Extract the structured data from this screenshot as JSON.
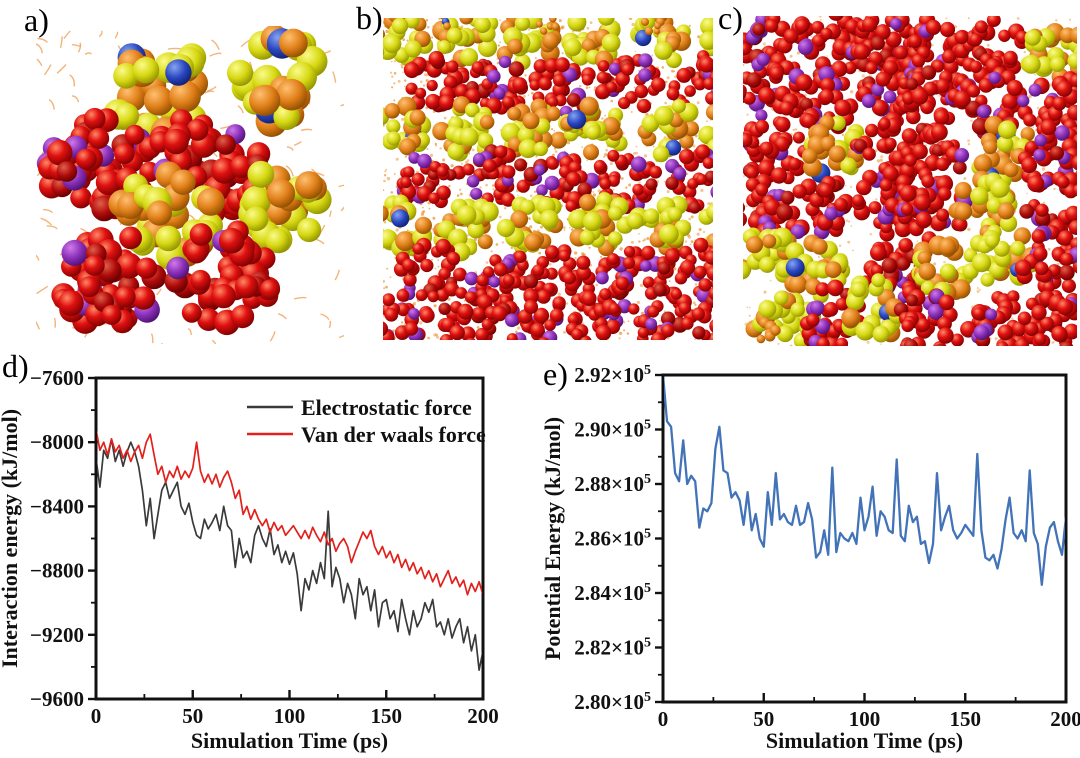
{
  "figure": {
    "panels": {
      "a": {
        "label": "a)"
      },
      "b": {
        "label": "b)"
      },
      "c": {
        "label": "c)"
      },
      "d": {
        "label": "d)"
      },
      "e": {
        "label": "e)"
      }
    },
    "colors": {
      "electrostatic": "#3a3a3a",
      "vdw": "#e3211c",
      "potential": "#4273b8",
      "red_cluster": "#d40f0f",
      "purple_core": "#8a2fb8",
      "yellow_cluster": "#d6d812",
      "orange_atom": "#e07f18",
      "solvent": "#ef9440"
    }
  },
  "chart_data": [
    {
      "id": "d",
      "type": "line",
      "panel_label": "d)",
      "xlabel": "Simulation Time (ps)",
      "ylabel": "Interaction energy (kJ/mol)",
      "xlim": [
        0,
        200
      ],
      "ylim": [
        -9600,
        -7600
      ],
      "xticks": [
        0,
        50,
        100,
        150,
        200
      ],
      "yticks": [
        -9600,
        -9200,
        -8800,
        -8400,
        -8000,
        -7600
      ],
      "x_minor_step": 25,
      "y_minor_step": 200,
      "grid": false,
      "legend_position": "top-right",
      "x": [
        0,
        2,
        4,
        6,
        8,
        10,
        12,
        14,
        16,
        18,
        20,
        22,
        24,
        26,
        28,
        30,
        32,
        34,
        36,
        38,
        40,
        42,
        44,
        46,
        48,
        50,
        52,
        54,
        56,
        58,
        60,
        62,
        64,
        66,
        68,
        70,
        72,
        74,
        76,
        78,
        80,
        82,
        84,
        86,
        88,
        90,
        92,
        94,
        96,
        98,
        100,
        102,
        104,
        106,
        108,
        110,
        112,
        114,
        116,
        118,
        120,
        122,
        124,
        126,
        128,
        130,
        132,
        134,
        136,
        138,
        140,
        142,
        144,
        146,
        148,
        150,
        152,
        154,
        156,
        158,
        160,
        162,
        164,
        166,
        168,
        170,
        172,
        174,
        176,
        178,
        180,
        182,
        184,
        186,
        188,
        190,
        192,
        194,
        196,
        198,
        200
      ],
      "series": [
        {
          "name": "Electrostatic force",
          "color": "#3a3a3a",
          "values": [
            -8100,
            -8280,
            -8050,
            -8100,
            -7980,
            -8120,
            -8050,
            -8150,
            -8060,
            -8000,
            -8060,
            -8150,
            -8300,
            -8520,
            -8350,
            -8600,
            -8450,
            -8300,
            -8250,
            -8350,
            -8300,
            -8250,
            -8400,
            -8450,
            -8380,
            -8500,
            -8580,
            -8600,
            -8480,
            -8540,
            -8500,
            -8450,
            -8550,
            -8400,
            -8520,
            -8550,
            -8780,
            -8600,
            -8720,
            -8680,
            -8750,
            -8580,
            -8520,
            -8600,
            -8650,
            -8540,
            -8700,
            -8640,
            -8750,
            -8680,
            -8760,
            -8690,
            -8820,
            -9050,
            -8850,
            -8920,
            -8800,
            -8880,
            -8750,
            -8850,
            -8430,
            -8900,
            -8780,
            -8850,
            -9000,
            -8880,
            -8950,
            -9100,
            -8850,
            -8950,
            -8900,
            -9050,
            -8920,
            -9150,
            -9000,
            -8980,
            -9100,
            -9050,
            -9180,
            -8980,
            -9100,
            -9200,
            -9050,
            -9150,
            -9100,
            -9000,
            -9060,
            -8980,
            -9150,
            -9120,
            -9200,
            -9100,
            -9220,
            -9150,
            -9100,
            -9250,
            -9150,
            -9300,
            -9200,
            -9420,
            -9300
          ]
        },
        {
          "name": "Van der waals force",
          "color": "#e3211c",
          "values": [
            -7920,
            -8050,
            -8000,
            -8080,
            -7980,
            -8060,
            -8020,
            -8100,
            -8050,
            -8120,
            -8060,
            -8020,
            -8100,
            -8000,
            -7950,
            -8080,
            -8200,
            -8150,
            -8250,
            -8180,
            -8220,
            -8150,
            -8230,
            -8180,
            -8220,
            -8160,
            -8000,
            -8180,
            -8250,
            -8200,
            -8260,
            -8200,
            -8280,
            -8220,
            -8180,
            -8250,
            -8350,
            -8300,
            -8450,
            -8400,
            -8480,
            -8420,
            -8480,
            -8520,
            -8480,
            -8560,
            -8500,
            -8550,
            -8520,
            -8580,
            -8550,
            -8520,
            -8560,
            -8600,
            -8550,
            -8600,
            -8530,
            -8580,
            -8620,
            -8560,
            -8640,
            -8600,
            -8680,
            -8630,
            -8600,
            -8650,
            -8750,
            -8680,
            -8620,
            -8560,
            -8600,
            -8550,
            -8650,
            -8700,
            -8650,
            -8720,
            -8680,
            -8750,
            -8700,
            -8780,
            -8730,
            -8800,
            -8750,
            -8820,
            -8780,
            -8850,
            -8800,
            -8870,
            -8820,
            -8900,
            -8850,
            -8800,
            -8880,
            -8840,
            -8900,
            -8860,
            -8950,
            -8880,
            -8930,
            -8870,
            -8950
          ]
        }
      ]
    },
    {
      "id": "e",
      "type": "line",
      "panel_label": "e)",
      "xlabel": "Simulation Time (ps)",
      "ylabel": "Potential Energy (kJ/mol)",
      "xlim": [
        0,
        200
      ],
      "ylim": [
        280000,
        292000
      ],
      "xticks": [
        0,
        50,
        100,
        150,
        200
      ],
      "yticks": [
        280000,
        282000,
        284000,
        286000,
        288000,
        290000,
        292000
      ],
      "ytick_format": "sci5",
      "x_minor_step": 25,
      "y_minor_step": 1000,
      "grid": false,
      "x": [
        0,
        2,
        4,
        6,
        8,
        10,
        12,
        14,
        16,
        18,
        20,
        22,
        24,
        26,
        28,
        30,
        32,
        34,
        36,
        38,
        40,
        42,
        44,
        46,
        48,
        50,
        52,
        54,
        56,
        58,
        60,
        62,
        64,
        66,
        68,
        70,
        72,
        74,
        76,
        78,
        80,
        82,
        84,
        86,
        88,
        90,
        92,
        94,
        96,
        98,
        100,
        102,
        104,
        106,
        108,
        110,
        112,
        114,
        116,
        118,
        120,
        122,
        124,
        126,
        128,
        130,
        132,
        134,
        136,
        138,
        140,
        142,
        144,
        146,
        148,
        150,
        152,
        154,
        156,
        158,
        160,
        162,
        164,
        166,
        168,
        170,
        172,
        174,
        176,
        178,
        180,
        182,
        184,
        186,
        188,
        190,
        192,
        194,
        196,
        198,
        200
      ],
      "series": [
        {
          "name": "Potential Energy",
          "color": "#4273b8",
          "values": [
            292000,
            290300,
            290100,
            288400,
            288100,
            289600,
            288000,
            288300,
            288100,
            286400,
            287100,
            287000,
            287300,
            289300,
            290100,
            288500,
            288400,
            287500,
            287700,
            287400,
            286500,
            287700,
            286300,
            286900,
            286000,
            285700,
            287700,
            286500,
            288400,
            286700,
            286900,
            286600,
            286500,
            287200,
            286500,
            286600,
            287300,
            286700,
            285300,
            285500,
            286300,
            285400,
            288600,
            285500,
            286200,
            286000,
            285900,
            286200,
            285800,
            287500,
            286300,
            286800,
            287900,
            286100,
            287000,
            286800,
            286300,
            286200,
            288900,
            286100,
            285900,
            287200,
            286600,
            286800,
            285800,
            285900,
            285100,
            285800,
            288400,
            286300,
            286800,
            287200,
            286300,
            286000,
            286200,
            286500,
            286300,
            286100,
            289100,
            286300,
            285300,
            285200,
            285400,
            284900,
            285600,
            286700,
            287500,
            286200,
            286000,
            286300,
            285900,
            288500,
            286200,
            285800,
            284300,
            285700,
            286400,
            286600,
            285900,
            285400,
            286800
          ]
        }
      ]
    }
  ]
}
